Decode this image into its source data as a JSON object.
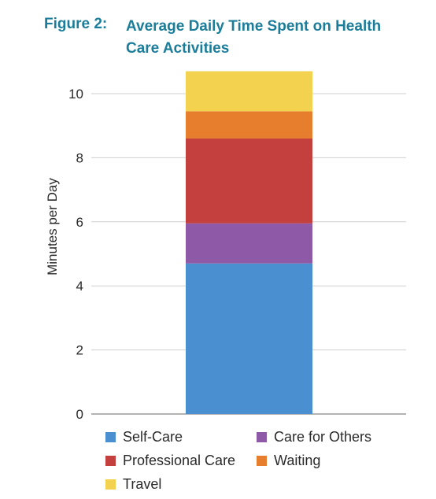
{
  "figure": {
    "label": "Figure 2:",
    "title": "Average Daily Time Spent on Health Care Activities"
  },
  "chart_data": {
    "type": "bar",
    "stacked": true,
    "categories": [
      ""
    ],
    "series": [
      {
        "name": "Self-Care",
        "values": [
          4.7
        ],
        "color": "#4a8fcf"
      },
      {
        "name": "Care for Others",
        "values": [
          1.25
        ],
        "color": "#8e5aa8"
      },
      {
        "name": "Professional Care",
        "values": [
          2.65
        ],
        "color": "#c4403f"
      },
      {
        "name": "Waiting",
        "values": [
          0.85
        ],
        "color": "#e67e2e"
      },
      {
        "name": "Travel",
        "values": [
          1.25
        ],
        "color": "#f2d24e"
      }
    ],
    "ylabel": "Minutes per Day",
    "ylim": [
      0,
      10.7
    ],
    "yticks": [
      "0",
      "2",
      "4",
      "6",
      "8",
      "10"
    ],
    "grid": true,
    "legend_position": "bottom"
  }
}
